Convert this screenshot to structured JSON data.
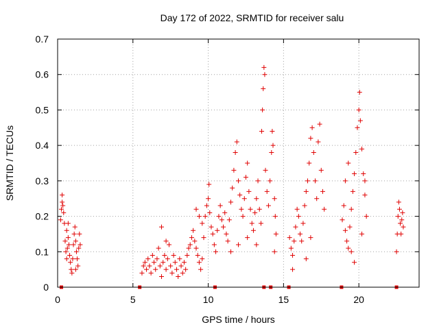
{
  "chart_data": {
    "type": "scatter",
    "title": "Day 172 of 2022, SRMTID for receiver salu",
    "xlabel": "GPS time / hours",
    "ylabel": "SRMTID / TECUs",
    "xlim": [
      0,
      24
    ],
    "ylim": [
      0,
      0.7
    ],
    "x_ticks": [
      0,
      5,
      10,
      15,
      20
    ],
    "y_ticks": [
      0,
      0.1,
      0.2,
      0.3,
      0.4,
      0.5,
      0.6,
      0.7
    ],
    "grid": true,
    "marker": "plus",
    "color": "#e00000",
    "data_gap_markers_x": [
      0.25,
      5.45,
      10.45,
      13.7,
      14.15,
      15.35,
      18.85,
      22.5
    ],
    "series": [
      {
        "name": "SRMTID",
        "points": [
          [
            0.2,
            0.19
          ],
          [
            0.25,
            0.22
          ],
          [
            0.3,
            0.24
          ],
          [
            0.35,
            0.23
          ],
          [
            0.3,
            0.26
          ],
          [
            0.4,
            0.21
          ],
          [
            0.45,
            0.18
          ],
          [
            0.5,
            0.13
          ],
          [
            0.55,
            0.1
          ],
          [
            0.6,
            0.08
          ],
          [
            0.65,
            0.11
          ],
          [
            0.7,
            0.14
          ],
          [
            0.75,
            0.12
          ],
          [
            0.8,
            0.09
          ],
          [
            0.85,
            0.07
          ],
          [
            0.9,
            0.05
          ],
          [
            0.95,
            0.04
          ],
          [
            1.0,
            0.08
          ],
          [
            1.05,
            0.12
          ],
          [
            1.1,
            0.15
          ],
          [
            1.15,
            0.17
          ],
          [
            1.2,
            0.13
          ],
          [
            1.25,
            0.1
          ],
          [
            1.3,
            0.08
          ],
          [
            1.35,
            0.06
          ],
          [
            1.4,
            0.11
          ],
          [
            1.45,
            0.15
          ],
          [
            1.5,
            0.12
          ],
          [
            0.6,
            0.16
          ],
          [
            0.7,
            0.18
          ],
          [
            1.2,
            0.05
          ],
          [
            5.6,
            0.04
          ],
          [
            5.7,
            0.06
          ],
          [
            5.8,
            0.07
          ],
          [
            5.9,
            0.05
          ],
          [
            6.0,
            0.08
          ],
          [
            6.1,
            0.06
          ],
          [
            6.2,
            0.04
          ],
          [
            6.3,
            0.09
          ],
          [
            6.4,
            0.07
          ],
          [
            6.5,
            0.05
          ],
          [
            6.6,
            0.08
          ],
          [
            6.7,
            0.11
          ],
          [
            6.8,
            0.06
          ],
          [
            6.9,
            0.03
          ],
          [
            7.0,
            0.07
          ],
          [
            7.1,
            0.09
          ],
          [
            7.2,
            0.05
          ],
          [
            7.3,
            0.08
          ],
          [
            7.4,
            0.12
          ],
          [
            7.5,
            0.06
          ],
          [
            7.6,
            0.04
          ],
          [
            7.7,
            0.09
          ],
          [
            7.8,
            0.07
          ],
          [
            7.9,
            0.05
          ],
          [
            8.0,
            0.03
          ],
          [
            8.1,
            0.08
          ],
          [
            8.2,
            0.06
          ],
          [
            8.3,
            0.04
          ],
          [
            8.4,
            0.07
          ],
          [
            8.5,
            0.05
          ],
          [
            8.6,
            0.09
          ],
          [
            8.7,
            0.11
          ],
          [
            6.9,
            0.17
          ],
          [
            7.2,
            0.13
          ],
          [
            8.8,
            0.12
          ],
          [
            8.9,
            0.14
          ],
          [
            9.0,
            0.16
          ],
          [
            9.1,
            0.13
          ],
          [
            9.2,
            0.11
          ],
          [
            9.3,
            0.09
          ],
          [
            9.4,
            0.07
          ],
          [
            9.5,
            0.05
          ],
          [
            9.6,
            0.08
          ],
          [
            9.7,
            0.14
          ],
          [
            9.8,
            0.2
          ],
          [
            9.9,
            0.23
          ],
          [
            10.0,
            0.25
          ],
          [
            10.05,
            0.29
          ],
          [
            10.1,
            0.21
          ],
          [
            10.2,
            0.17
          ],
          [
            10.3,
            0.15
          ],
          [
            10.4,
            0.12
          ],
          [
            10.5,
            0.1
          ],
          [
            9.2,
            0.22
          ],
          [
            9.4,
            0.2
          ],
          [
            9.6,
            0.18
          ],
          [
            10.6,
            0.16
          ],
          [
            10.7,
            0.2
          ],
          [
            10.8,
            0.23
          ],
          [
            10.9,
            0.19
          ],
          [
            11.0,
            0.17
          ],
          [
            11.1,
            0.21
          ],
          [
            11.2,
            0.15
          ],
          [
            11.3,
            0.13
          ],
          [
            11.4,
            0.19
          ],
          [
            11.5,
            0.24
          ],
          [
            11.6,
            0.28
          ],
          [
            11.7,
            0.33
          ],
          [
            11.8,
            0.38
          ],
          [
            11.9,
            0.41
          ],
          [
            12.0,
            0.3
          ],
          [
            12.1,
            0.26
          ],
          [
            12.2,
            0.22
          ],
          [
            12.3,
            0.2
          ],
          [
            12.4,
            0.25
          ],
          [
            12.5,
            0.31
          ],
          [
            12.6,
            0.35
          ],
          [
            12.7,
            0.27
          ],
          [
            12.8,
            0.22
          ],
          [
            12.9,
            0.18
          ],
          [
            13.0,
            0.16
          ],
          [
            13.1,
            0.21
          ],
          [
            13.2,
            0.25
          ],
          [
            13.3,
            0.3
          ],
          [
            13.4,
            0.22
          ],
          [
            13.5,
            0.18
          ],
          [
            13.55,
            0.44
          ],
          [
            13.6,
            0.5
          ],
          [
            13.65,
            0.56
          ],
          [
            13.7,
            0.62
          ],
          [
            13.75,
            0.6
          ],
          [
            13.8,
            0.33
          ],
          [
            13.9,
            0.27
          ],
          [
            14.0,
            0.23
          ],
          [
            14.1,
            0.3
          ],
          [
            14.2,
            0.38
          ],
          [
            14.25,
            0.44
          ],
          [
            14.3,
            0.4
          ],
          [
            14.4,
            0.25
          ],
          [
            14.45,
            0.2
          ],
          [
            14.5,
            0.15
          ],
          [
            14.4,
            0.1
          ],
          [
            12.0,
            0.12
          ],
          [
            11.5,
            0.1
          ],
          [
            12.6,
            0.14
          ],
          [
            13.2,
            0.12
          ],
          [
            15.4,
            0.14
          ],
          [
            15.5,
            0.11
          ],
          [
            15.6,
            0.09
          ],
          [
            15.7,
            0.13
          ],
          [
            15.8,
            0.17
          ],
          [
            15.9,
            0.22
          ],
          [
            16.0,
            0.2
          ],
          [
            16.1,
            0.15
          ],
          [
            16.2,
            0.13
          ],
          [
            16.3,
            0.18
          ],
          [
            16.4,
            0.23
          ],
          [
            16.5,
            0.27
          ],
          [
            16.6,
            0.3
          ],
          [
            16.7,
            0.35
          ],
          [
            16.8,
            0.42
          ],
          [
            16.9,
            0.45
          ],
          [
            17.0,
            0.38
          ],
          [
            17.1,
            0.3
          ],
          [
            17.2,
            0.25
          ],
          [
            17.3,
            0.41
          ],
          [
            17.4,
            0.46
          ],
          [
            17.5,
            0.33
          ],
          [
            17.6,
            0.27
          ],
          [
            17.7,
            0.22
          ],
          [
            15.6,
            0.05
          ],
          [
            16.5,
            0.08
          ],
          [
            16.8,
            0.14
          ],
          [
            18.9,
            0.19
          ],
          [
            19.0,
            0.23
          ],
          [
            19.1,
            0.16
          ],
          [
            19.2,
            0.13
          ],
          [
            19.3,
            0.11
          ],
          [
            19.4,
            0.17
          ],
          [
            19.5,
            0.22
          ],
          [
            19.6,
            0.27
          ],
          [
            19.7,
            0.32
          ],
          [
            19.8,
            0.38
          ],
          [
            19.9,
            0.45
          ],
          [
            20.0,
            0.5
          ],
          [
            20.05,
            0.55
          ],
          [
            20.1,
            0.47
          ],
          [
            20.2,
            0.39
          ],
          [
            20.3,
            0.32
          ],
          [
            20.4,
            0.26
          ],
          [
            20.5,
            0.2
          ],
          [
            19.1,
            0.3
          ],
          [
            19.3,
            0.35
          ],
          [
            19.5,
            0.1
          ],
          [
            19.7,
            0.07
          ],
          [
            20.2,
            0.15
          ],
          [
            20.4,
            0.3
          ],
          [
            22.5,
            0.1
          ],
          [
            22.55,
            0.15
          ],
          [
            22.6,
            0.2
          ],
          [
            22.65,
            0.24
          ],
          [
            22.7,
            0.22
          ],
          [
            22.75,
            0.18
          ],
          [
            22.8,
            0.15
          ],
          [
            22.85,
            0.19
          ],
          [
            22.9,
            0.21
          ],
          [
            22.95,
            0.17
          ]
        ]
      }
    ]
  }
}
